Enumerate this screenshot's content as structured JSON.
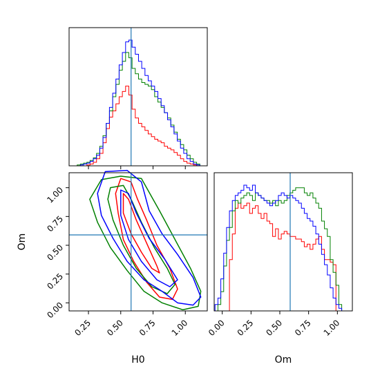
{
  "chart_data": {
    "type": "corner",
    "truth": {
      "H0": 0.58,
      "Om": 0.59
    },
    "truth_color": "#1f77b4",
    "series_colors": {
      "red": "#ff0000",
      "green": "#008000",
      "blue": "#0000ff"
    },
    "axes": {
      "H0": {
        "label": "H0",
        "lim": [
          0.1,
          1.17
        ],
        "ticks": [
          0.25,
          0.5,
          0.75,
          1.0
        ],
        "tick_labels": [
          "0.25",
          "0.50",
          "0.75",
          "1.00"
        ]
      },
      "Om": {
        "label": "Om",
        "lim": [
          -0.07,
          1.13
        ],
        "ticks": [
          0.0,
          0.25,
          0.5,
          0.75,
          1.0
        ],
        "tick_labels": [
          "0.00",
          "0.25",
          "0.50",
          "0.75",
          "1.00"
        ]
      }
    },
    "h0_hist": {
      "x": [
        0.15,
        0.175,
        0.2,
        0.225,
        0.25,
        0.275,
        0.3,
        0.325,
        0.35,
        0.375,
        0.4,
        0.425,
        0.45,
        0.475,
        0.5,
        0.525,
        0.55,
        0.575,
        0.6,
        0.625,
        0.65,
        0.675,
        0.7,
        0.725,
        0.75,
        0.775,
        0.8,
        0.825,
        0.85,
        0.875,
        0.9,
        0.925,
        0.95,
        0.975,
        1.0,
        1.025,
        1.05,
        1.075,
        1.1,
        1.125
      ],
      "series": [
        {
          "color": "red",
          "values": [
            0,
            0,
            0,
            0,
            1,
            2,
            4,
            8,
            14,
            26,
            42,
            55,
            62,
            70,
            78,
            84,
            90,
            80,
            64,
            54,
            48,
            44,
            40,
            36,
            33,
            30,
            28,
            26,
            22,
            20,
            18,
            15,
            12,
            8,
            5,
            3,
            2,
            1,
            0,
            0
          ]
        },
        {
          "color": "green",
          "values": [
            0,
            1,
            2,
            3,
            4,
            6,
            9,
            14,
            22,
            34,
            48,
            62,
            78,
            92,
            108,
            118,
            128,
            122,
            110,
            104,
            98,
            94,
            92,
            90,
            86,
            78,
            72,
            66,
            60,
            54,
            46,
            38,
            30,
            24,
            18,
            12,
            8,
            4,
            2,
            0
          ]
        },
        {
          "color": "blue",
          "values": [
            0,
            0,
            1,
            2,
            3,
            5,
            8,
            12,
            20,
            32,
            48,
            66,
            82,
            98,
            114,
            128,
            140,
            142,
            134,
            126,
            118,
            110,
            102,
            96,
            90,
            84,
            76,
            68,
            60,
            52,
            44,
            36,
            28,
            20,
            14,
            8,
            5,
            2,
            1,
            0
          ]
        }
      ]
    },
    "om_hist": {
      "x": [
        -0.05,
        -0.025,
        0.0,
        0.025,
        0.05,
        0.075,
        0.1,
        0.125,
        0.15,
        0.175,
        0.2,
        0.225,
        0.25,
        0.275,
        0.3,
        0.325,
        0.35,
        0.375,
        0.4,
        0.425,
        0.45,
        0.475,
        0.5,
        0.525,
        0.55,
        0.575,
        0.6,
        0.625,
        0.65,
        0.675,
        0.7,
        0.725,
        0.75,
        0.775,
        0.8,
        0.825,
        0.85,
        0.875,
        0.9,
        0.925,
        0.95,
        0.975,
        1.0,
        1.025,
        1.05,
        1.075,
        1.1
      ],
      "series": [
        {
          "color": "red",
          "values": [
            0,
            0,
            0,
            0,
            0,
            40,
            60,
            80,
            84,
            80,
            82,
            84,
            76,
            80,
            82,
            76,
            72,
            76,
            70,
            68,
            58,
            64,
            56,
            60,
            62,
            60,
            58,
            58,
            56,
            56,
            54,
            50,
            52,
            48,
            52,
            56,
            58,
            48,
            40,
            40,
            38,
            36,
            0,
            0,
            0,
            0,
            0
          ]
        },
        {
          "color": "green",
          "values": [
            0,
            5,
            15,
            35,
            55,
            65,
            78,
            86,
            84,
            88,
            90,
            92,
            90,
            86,
            92,
            90,
            88,
            86,
            86,
            84,
            86,
            82,
            86,
            84,
            86,
            90,
            92,
            94,
            96,
            96,
            96,
            92,
            90,
            92,
            88,
            84,
            80,
            70,
            64,
            58,
            40,
            30,
            20,
            5,
            0,
            0,
            0
          ]
        },
        {
          "color": "blue",
          "values": [
            5,
            10,
            25,
            45,
            65,
            78,
            86,
            90,
            92,
            94,
            98,
            96,
            94,
            98,
            92,
            90,
            88,
            86,
            84,
            82,
            84,
            86,
            90,
            92,
            90,
            88,
            90,
            88,
            86,
            84,
            80,
            76,
            72,
            70,
            66,
            60,
            52,
            44,
            36,
            28,
            18,
            10,
            5,
            2,
            0,
            0,
            0
          ]
        }
      ]
    },
    "contours": [
      {
        "color": "red",
        "paths": [
          [
            [
              0.5,
              1.08
            ],
            [
              0.58,
              1.05
            ],
            [
              0.63,
              0.9
            ],
            [
              0.7,
              0.72
            ],
            [
              0.78,
              0.5
            ],
            [
              0.88,
              0.3
            ],
            [
              0.94,
              0.12
            ],
            [
              0.9,
              0.03
            ],
            [
              0.8,
              0.05
            ],
            [
              0.7,
              0.18
            ],
            [
              0.6,
              0.36
            ],
            [
              0.52,
              0.55
            ],
            [
              0.48,
              0.78
            ],
            [
              0.46,
              0.95
            ],
            [
              0.5,
              1.08
            ]
          ],
          [
            [
              0.52,
              0.95
            ],
            [
              0.56,
              0.9
            ],
            [
              0.62,
              0.72
            ],
            [
              0.7,
              0.52
            ],
            [
              0.78,
              0.32
            ],
            [
              0.8,
              0.26
            ],
            [
              0.74,
              0.3
            ],
            [
              0.66,
              0.44
            ],
            [
              0.58,
              0.6
            ],
            [
              0.52,
              0.78
            ],
            [
              0.52,
              0.95
            ]
          ]
        ]
      },
      {
        "color": "green",
        "paths": [
          [
            [
              0.35,
              1.07
            ],
            [
              0.5,
              1.1
            ],
            [
              0.66,
              1.08
            ],
            [
              0.8,
              0.8
            ],
            [
              0.92,
              0.55
            ],
            [
              1.04,
              0.3
            ],
            [
              1.12,
              0.1
            ],
            [
              1.1,
              -0.03
            ],
            [
              0.98,
              -0.06
            ],
            [
              0.82,
              0.0
            ],
            [
              0.68,
              0.1
            ],
            [
              0.55,
              0.28
            ],
            [
              0.42,
              0.48
            ],
            [
              0.32,
              0.7
            ],
            [
              0.26,
              0.9
            ],
            [
              0.35,
              1.07
            ]
          ],
          [
            [
              0.42,
              1.0
            ],
            [
              0.52,
              1.02
            ],
            [
              0.58,
              0.9
            ],
            [
              0.66,
              0.7
            ],
            [
              0.76,
              0.48
            ],
            [
              0.86,
              0.3
            ],
            [
              0.92,
              0.16
            ],
            [
              0.86,
              0.08
            ],
            [
              0.74,
              0.14
            ],
            [
              0.62,
              0.3
            ],
            [
              0.52,
              0.5
            ],
            [
              0.44,
              0.72
            ],
            [
              0.4,
              0.9
            ],
            [
              0.42,
              1.0
            ]
          ]
        ]
      },
      {
        "color": "blue",
        "paths": [
          [
            [
              0.38,
              1.14
            ],
            [
              0.55,
              1.15
            ],
            [
              0.66,
              1.05
            ],
            [
              0.72,
              0.8
            ],
            [
              0.82,
              0.6
            ],
            [
              0.94,
              0.42
            ],
            [
              1.06,
              0.22
            ],
            [
              1.12,
              0.05
            ],
            [
              1.06,
              -0.02
            ],
            [
              0.94,
              0.0
            ],
            [
              0.82,
              0.1
            ],
            [
              0.68,
              0.2
            ],
            [
              0.55,
              0.36
            ],
            [
              0.44,
              0.56
            ],
            [
              0.35,
              0.76
            ],
            [
              0.32,
              0.95
            ],
            [
              0.38,
              1.14
            ]
          ],
          [
            [
              0.5,
              0.98
            ],
            [
              0.56,
              0.95
            ],
            [
              0.62,
              0.78
            ],
            [
              0.72,
              0.56
            ],
            [
              0.84,
              0.38
            ],
            [
              0.94,
              0.2
            ],
            [
              0.88,
              0.14
            ],
            [
              0.78,
              0.2
            ],
            [
              0.66,
              0.36
            ],
            [
              0.56,
              0.55
            ],
            [
              0.5,
              0.76
            ],
            [
              0.5,
              0.98
            ]
          ]
        ]
      }
    ]
  }
}
